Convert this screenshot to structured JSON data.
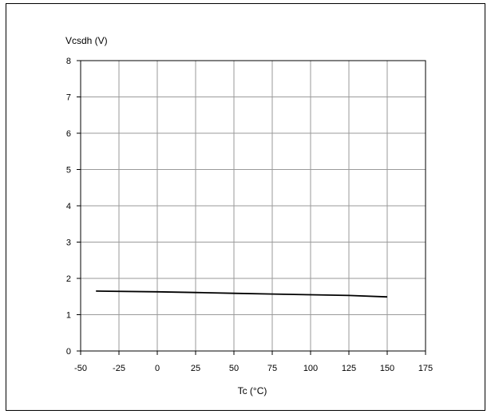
{
  "chart_data": {
    "type": "line",
    "title": "",
    "xlabel": "Tc (°C)",
    "ylabel": "Vcsdh (V)",
    "xlim": [
      -50,
      175
    ],
    "ylim": [
      0,
      8
    ],
    "x_ticks": [
      -50,
      -25,
      0,
      25,
      50,
      75,
      100,
      125,
      150,
      175
    ],
    "y_ticks": [
      0,
      1,
      2,
      3,
      4,
      5,
      6,
      7,
      8
    ],
    "grid": true,
    "legend": "none",
    "series": [
      {
        "color": "#000000",
        "x": [
          -40,
          0,
          25,
          50,
          75,
          100,
          125,
          150
        ],
        "y": [
          1.65,
          1.63,
          1.61,
          1.59,
          1.57,
          1.55,
          1.53,
          1.49
        ]
      }
    ]
  }
}
